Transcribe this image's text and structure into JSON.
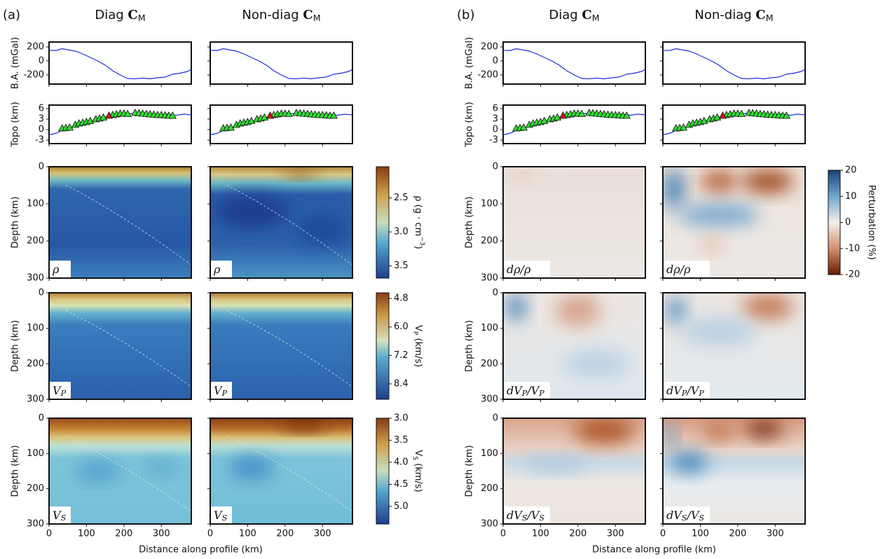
{
  "column_titles": [
    [
      {
        "t": "Diag "
      },
      {
        "b": "C"
      },
      {
        "s": "M"
      }
    ],
    [
      {
        "t": "Non-diag "
      },
      {
        "b": "C"
      },
      {
        "s": "M"
      }
    ]
  ],
  "panels": [
    {
      "label": "(a)",
      "insets": [
        [
          {
            "t": "ρ"
          }
        ],
        [
          {
            "t": "V"
          },
          {
            "s": "P"
          }
        ],
        [
          {
            "t": "V"
          },
          {
            "s": "S"
          }
        ]
      ],
      "colorbars": [
        {
          "label": [
            {
              "t": "ρ (g · cm"
            },
            {
              "sup": "−3"
            },
            {
              "t": ")"
            }
          ],
          "lim": [
            3.68,
            2.04
          ],
          "ticks": [
            2.5,
            {
              "value": 3,
              "label": "3.0"
            },
            3.5
          ]
        },
        {
          "label": [
            {
              "t": "V"
            },
            {
              "s": "P"
            },
            {
              "t": " (km/s)"
            }
          ],
          "lim": [
            9.05,
            4.56
          ],
          "ticks": [
            4.8,
            {
              "value": 6,
              "label": "6.0"
            },
            7.2,
            8.4
          ]
        },
        {
          "label": [
            {
              "t": "V"
            },
            {
              "s": "S"
            },
            {
              "t": " (km/s)"
            }
          ],
          "lim": [
            5.4,
            3.0
          ],
          "ticks": [
            {
              "value": 3,
              "label": "3.0"
            },
            3.5,
            {
              "value": 4,
              "label": "4.0"
            },
            4.5,
            {
              "value": 5,
              "label": "5.0"
            }
          ]
        }
      ]
    },
    {
      "label": "(b)",
      "insets": [
        [
          {
            "t": "dρ/ρ"
          }
        ],
        [
          {
            "t": "dV"
          },
          {
            "s": "P"
          },
          {
            "t": "/V"
          },
          {
            "s": "P"
          }
        ],
        [
          {
            "t": "dV"
          },
          {
            "s": "S"
          },
          {
            "t": "/V"
          },
          {
            "s": "S"
          }
        ]
      ],
      "colorbars": [
        {
          "label": [
            {
              "t": "Perturbation (%)"
            }
          ],
          "lim": [
            -20,
            20
          ],
          "ticks": [
            20,
            10,
            0,
            -10,
            -20
          ]
        }
      ]
    }
  ],
  "gravity": {
    "ylabel": "B.A. (mGal)",
    "ylim": [
      -330,
      270
    ],
    "yticks": [
      -200,
      0,
      200
    ],
    "color": "#1f2ee0",
    "x": [
      0,
      20,
      35,
      50,
      70,
      90,
      110,
      130,
      150,
      170,
      190,
      210,
      230,
      250,
      270,
      290,
      310,
      330,
      350,
      370,
      380
    ],
    "values": [
      150,
      150,
      175,
      160,
      140,
      100,
      50,
      0,
      -60,
      -140,
      -200,
      -250,
      -255,
      -245,
      -255,
      -240,
      -230,
      -190,
      -175,
      -150,
      -120
    ]
  },
  "topo": {
    "ylabel": "Topo (km)",
    "ylim": [
      -4,
      7
    ],
    "yticks": [
      -3,
      0,
      3,
      6
    ],
    "color": "#1f2ee0",
    "x": [
      0,
      20,
      40,
      60,
      80,
      100,
      120,
      140,
      160,
      180,
      200,
      220,
      240,
      260,
      280,
      300,
      320,
      340,
      360,
      380
    ],
    "values": [
      -1.5,
      -1,
      0,
      0.5,
      1.5,
      2,
      2.5,
      3.2,
      3.8,
      4.3,
      4.5,
      4.6,
      4.5,
      4.4,
      4.2,
      4.3,
      4.4,
      4.1,
      4.4,
      4.2
    ],
    "stations": {
      "color": "#33dd33",
      "x": [
        35,
        45,
        55,
        70,
        80,
        90,
        100,
        110,
        125,
        135,
        145,
        170,
        180,
        190,
        200,
        210,
        230,
        240,
        250,
        260,
        270,
        280,
        290,
        300,
        310,
        320,
        330
      ],
      "elevation": [
        0.4,
        0.5,
        0.6,
        1.4,
        1.8,
        2.0,
        2.2,
        2.5,
        3.0,
        3.2,
        3.5,
        4.2,
        4.4,
        4.6,
        4.6,
        4.5,
        4.8,
        4.7,
        4.6,
        4.5,
        4.4,
        4.3,
        4.2,
        4.2,
        4.1,
        4.0,
        4.0
      ]
    },
    "volcanoes": {
      "color": "#cc1a1a",
      "x": [
        160
      ],
      "elevation": [
        4.0
      ]
    }
  },
  "depth": {
    "ylabel": "Depth (km)",
    "ylim": [
      300,
      0
    ],
    "yticks": [
      0,
      100,
      200,
      300
    ]
  },
  "distance": {
    "xlabel": "Distance along profile (km)",
    "xlim": [
      0,
      380
    ],
    "xticks": [
      0,
      100,
      200,
      300
    ]
  }
}
